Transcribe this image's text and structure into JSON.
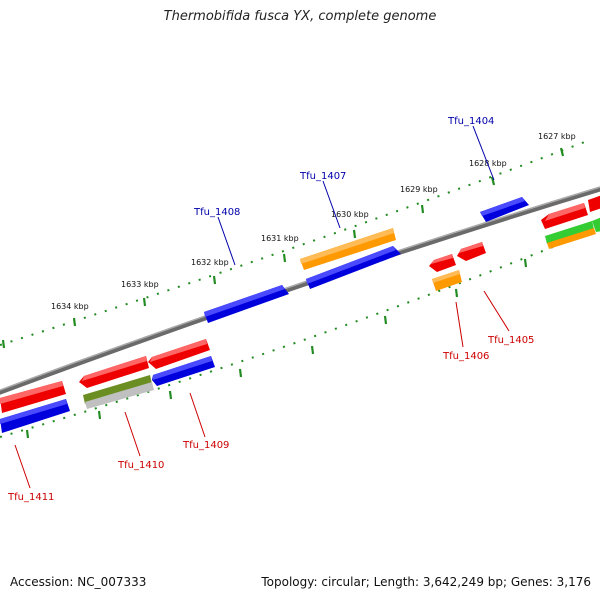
{
  "title": "Thermobifida fusca YX, complete genome",
  "footer": {
    "accession": "Accession: NC_007333",
    "summary": "Topology: circular; Length: 3,642,249 bp; Genes: 3,176"
  },
  "colors": {
    "forward_label": "#0000aa",
    "reverse_label": "#cc0000",
    "backbone": "#808080",
    "ticks": "#228b22",
    "gene_red": "#ee0000",
    "gene_blue": "#0000dd",
    "gene_orange": "#ff9900",
    "gene_green": "#33cc33",
    "gene_olive": "#6b8e23",
    "gene_gray": "#c0c0c0"
  },
  "kbp_labels": [
    "1627 kbp",
    "1628 kbp",
    "1629 kbp",
    "1630 kbp",
    "1631 kbp",
    "1632 kbp",
    "1633 kbp",
    "1634 kbp"
  ],
  "forward_genes": [
    "Tfu_1404",
    "Tfu_1407",
    "Tfu_1408"
  ],
  "reverse_genes": [
    "Tfu_1405",
    "Tfu_1406",
    "Tfu_1409",
    "Tfu_1410",
    "Tfu_1411"
  ]
}
